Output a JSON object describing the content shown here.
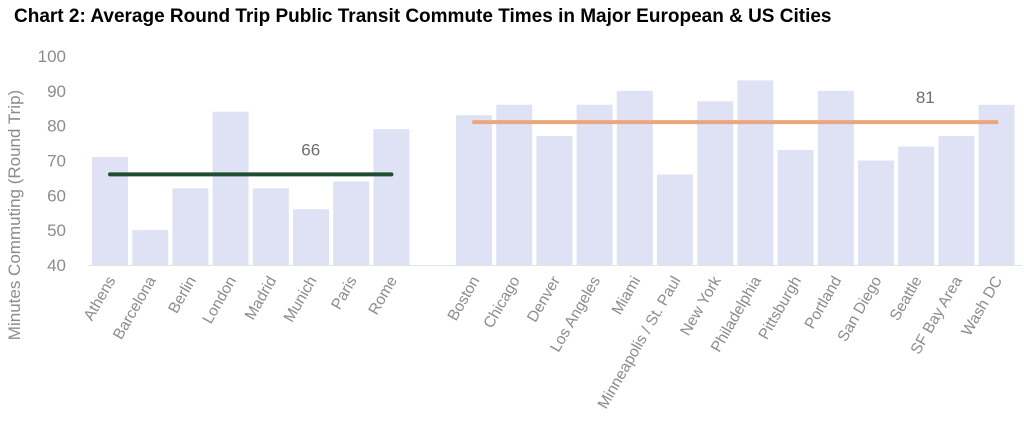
{
  "chart_data": {
    "type": "bar",
    "title": "Chart 2: Average Round Trip Public Transit Commute Times in Major European & US Cities",
    "ylabel": "Minutes Commuting (Round Trip)",
    "ylim": [
      40,
      100
    ],
    "yticks": [
      40,
      50,
      60,
      70,
      80,
      90,
      100
    ],
    "bar_color": "#dfe2f5",
    "groups": [
      {
        "categories": [
          "Athens",
          "Barcelona",
          "Berlin",
          "London",
          "Madrid",
          "Munich",
          "Paris",
          "Rome"
        ],
        "values": [
          71,
          50,
          62,
          84,
          62,
          56,
          64,
          79
        ],
        "average": 66,
        "average_label": "66",
        "average_color": "#1f4d2f"
      },
      {
        "categories": [
          "Boston",
          "Chicago",
          "Denver",
          "Los Angeles",
          "Miami",
          "Minneapolis / St. Paul",
          "New York",
          "Philadelphia",
          "Pittsburgh",
          "Portland",
          "San Diego",
          "Seattle",
          "SF Bay Area",
          "Wash DC"
        ],
        "values": [
          83,
          86,
          77,
          86,
          90,
          66,
          87,
          93,
          73,
          90,
          70,
          74,
          77,
          86
        ],
        "average": 81,
        "average_label": "81",
        "average_color": "#e9a67f"
      }
    ]
  }
}
